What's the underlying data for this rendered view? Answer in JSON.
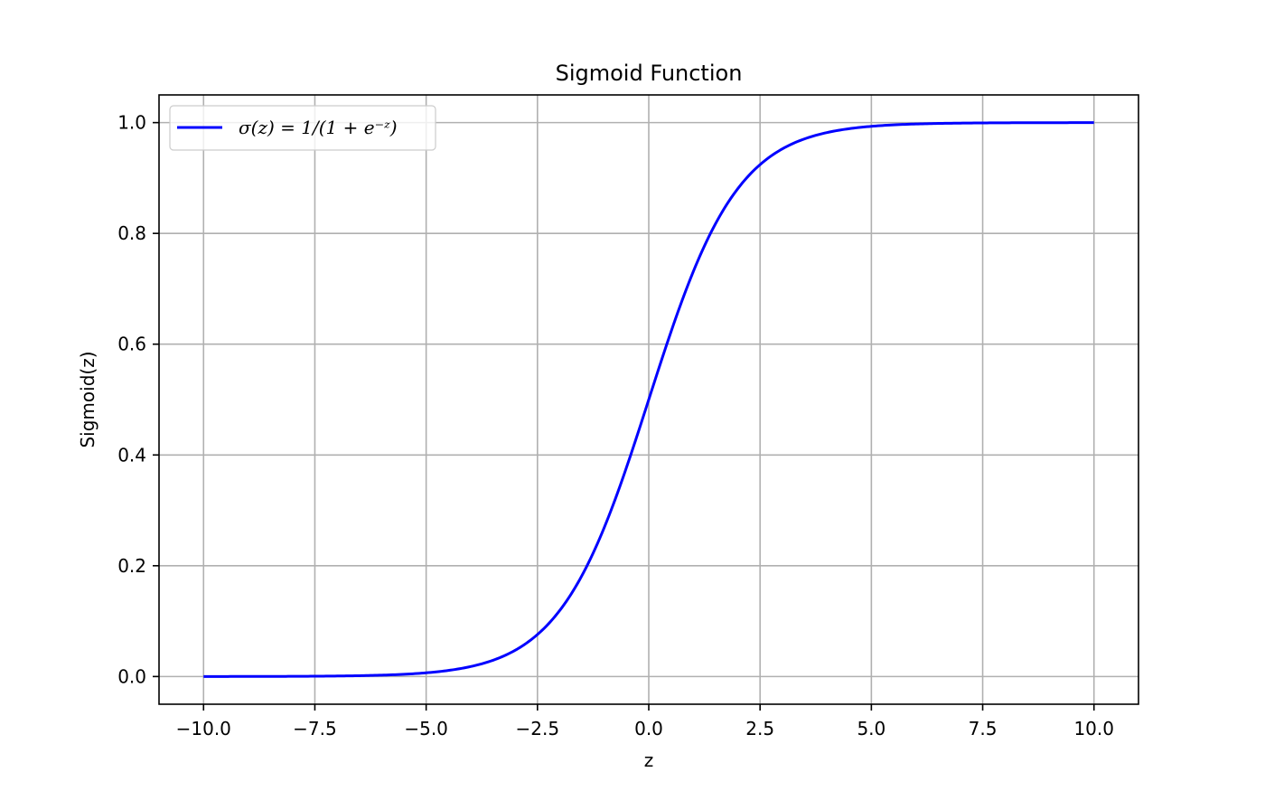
{
  "chart_data": {
    "type": "line",
    "title": "Sigmoid Function",
    "xlabel": "z",
    "ylabel": "Sigmoid(z)",
    "xlim": [
      -11.0,
      11.0
    ],
    "ylim": [
      -0.05,
      1.05
    ],
    "x_ticks": [
      -10.0,
      -7.5,
      -5.0,
      -2.5,
      0.0,
      2.5,
      5.0,
      7.5,
      10.0
    ],
    "x_tick_labels": [
      "−10.0",
      "−7.5",
      "−5.0",
      "−2.5",
      "0.0",
      "2.5",
      "5.0",
      "7.5",
      "10.0"
    ],
    "y_ticks": [
      0.0,
      0.2,
      0.4,
      0.6,
      0.8,
      1.0
    ],
    "y_tick_labels": [
      "0.0",
      "0.2",
      "0.4",
      "0.6",
      "0.8",
      "1.0"
    ],
    "grid": true,
    "legend_position": "top-left",
    "series": [
      {
        "name": "σ(z) = 1/(1 + e⁻ᶻ)",
        "color": "#0000ff",
        "x": [
          -10.0,
          -9.0,
          -8.0,
          -7.0,
          -6.0,
          -5.0,
          -4.5,
          -4.0,
          -3.5,
          -3.0,
          -2.5,
          -2.0,
          -1.5,
          -1.0,
          -0.5,
          0.0,
          0.5,
          1.0,
          1.5,
          2.0,
          2.5,
          3.0,
          3.5,
          4.0,
          4.5,
          5.0,
          6.0,
          7.0,
          8.0,
          9.0,
          10.0
        ],
        "y": [
          4.54e-05,
          0.0001234,
          0.0003354,
          0.0009111,
          0.0024726,
          0.0066929,
          0.0109869,
          0.0179862,
          0.0293122,
          0.0474259,
          0.0758582,
          0.1192029,
          0.1824255,
          0.2689414,
          0.3775407,
          0.5,
          0.6224593,
          0.7310586,
          0.8175745,
          0.8807971,
          0.9241418,
          0.9525741,
          0.9706878,
          0.9820138,
          0.9890131,
          0.9933071,
          0.9975274,
          0.9990889,
          0.9996646,
          0.9998766,
          0.9999546
        ]
      }
    ]
  },
  "legend": {
    "label": "σ(z) = 1/(1 + e⁻ᶻ)"
  }
}
